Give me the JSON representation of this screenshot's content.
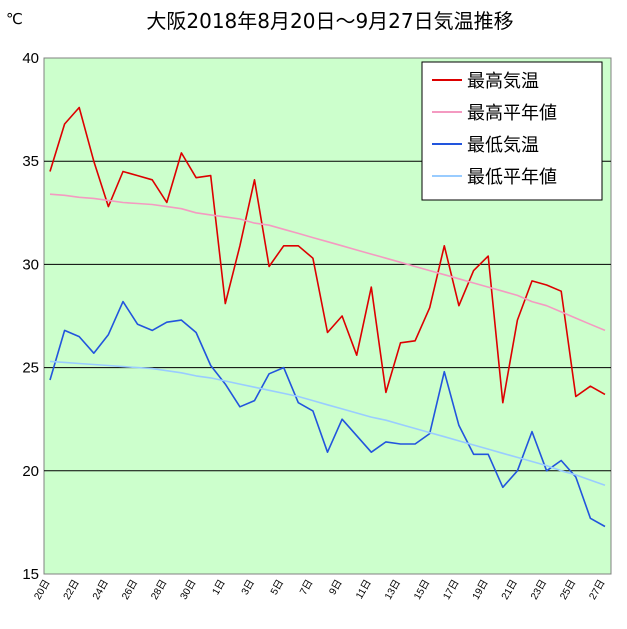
{
  "chart_data": {
    "type": "line",
    "title": "大阪2018年8月20日～9月27日気温推移",
    "unit": "℃",
    "ylim": [
      15,
      40
    ],
    "yticks": [
      "15",
      "20",
      "25",
      "30",
      "35",
      "40"
    ],
    "grid": "horizontal",
    "legend_position": "top-right",
    "plot_background": "#ccffcc",
    "x_labels": [
      "20日",
      "22日",
      "24日",
      "26日",
      "28日",
      "30日",
      "1日",
      "3日",
      "5日",
      "7日",
      "9日",
      "11日",
      "13日",
      "15日",
      "17日",
      "19日",
      "21日",
      "23日",
      "25日",
      "27日"
    ],
    "x_label_index": [
      0,
      2,
      4,
      6,
      8,
      10,
      12,
      14,
      16,
      18,
      20,
      22,
      24,
      26,
      28,
      30,
      32,
      34,
      36,
      38
    ],
    "series": [
      {
        "name": "最高気温",
        "color": "#dd0000",
        "values": [
          34.5,
          36.8,
          37.6,
          35.0,
          32.8,
          34.5,
          34.3,
          34.1,
          33.0,
          35.4,
          34.2,
          34.3,
          28.1,
          30.9,
          34.1,
          29.9,
          30.9,
          30.9,
          30.3,
          26.7,
          27.5,
          25.6,
          28.9,
          23.8,
          26.2,
          26.3,
          27.9,
          30.9,
          28.0,
          29.7,
          30.4,
          23.3,
          27.3,
          29.2,
          29.0,
          28.7,
          23.6,
          24.1,
          23.7
        ]
      },
      {
        "name": "最高平年値",
        "color": "#f49ac1",
        "values": [
          33.4,
          33.35,
          33.25,
          33.2,
          33.1,
          33.0,
          32.95,
          32.9,
          32.8,
          32.7,
          32.5,
          32.4,
          32.3,
          32.2,
          32.0,
          31.9,
          31.7,
          31.5,
          31.3,
          31.1,
          30.9,
          30.7,
          30.5,
          30.3,
          30.1,
          29.9,
          29.7,
          29.5,
          29.3,
          29.1,
          28.9,
          28.7,
          28.5,
          28.2,
          28.0,
          27.7,
          27.4,
          27.1,
          26.8
        ]
      },
      {
        "name": "最低気温",
        "color": "#2255dd",
        "values": [
          24.4,
          26.8,
          26.5,
          25.7,
          26.6,
          28.2,
          27.1,
          26.8,
          27.2,
          27.3,
          26.7,
          25.1,
          24.2,
          23.1,
          23.4,
          24.7,
          25.0,
          23.3,
          22.9,
          20.9,
          22.5,
          21.7,
          20.9,
          21.4,
          21.3,
          21.3,
          21.8,
          24.8,
          22.2,
          20.8,
          20.8,
          19.2,
          20.0,
          21.9,
          20.0,
          20.5,
          19.7,
          17.7,
          17.3
        ]
      },
      {
        "name": "最低平年値",
        "color": "#99ccff",
        "values": [
          25.3,
          25.25,
          25.2,
          25.15,
          25.1,
          25.05,
          25.0,
          24.95,
          24.85,
          24.75,
          24.6,
          24.5,
          24.35,
          24.2,
          24.05,
          23.9,
          23.75,
          23.6,
          23.4,
          23.2,
          23.0,
          22.8,
          22.6,
          22.45,
          22.25,
          22.05,
          21.85,
          21.65,
          21.45,
          21.25,
          21.05,
          20.85,
          20.65,
          20.45,
          20.25,
          20.0,
          19.8,
          19.55,
          19.3
        ]
      }
    ]
  }
}
